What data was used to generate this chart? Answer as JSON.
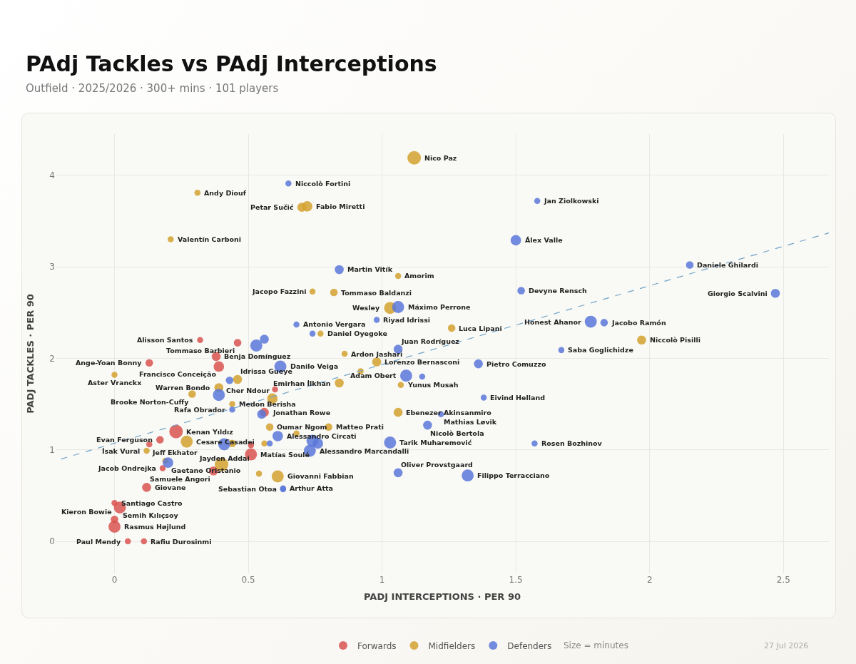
{
  "chart_data": {
    "type": "bubble",
    "title": "PAdj Tackles vs PAdj Interceptions",
    "subtitle": "Outfield · 2025/2026 · 300+ mins · 101 players",
    "xlabel": "PADJ INTERCEPTIONS · PER 90",
    "ylabel": "PADJ TACKLES · PER 90",
    "xlim": [
      -0.22,
      2.67
    ],
    "ylim": [
      -0.35,
      4.45
    ],
    "xticks": [
      0,
      0.5,
      1,
      1.5,
      2,
      2.5
    ],
    "yticks": [
      0,
      1,
      2,
      3,
      4
    ],
    "grid": true,
    "legend": "bottom",
    "marker": "circle",
    "series": [
      {
        "name": "Forwards",
        "color": "#d9534f",
        "x": [
          0.32,
          0.46,
          0.38,
          0.13,
          0.39,
          0.6,
          0.23,
          0.17,
          0.13,
          0.18,
          0.12,
          0,
          0.02,
          0,
          0,
          0.05,
          0.11,
          0.37,
          0.51,
          0.51,
          0.56
        ],
        "values": [
          2.2,
          2.17,
          2.02,
          1.95,
          1.91,
          1.66,
          1.2,
          1.11,
          1.06,
          0.8,
          0.59,
          0.42,
          0.37,
          0.24,
          0.16,
          0,
          0,
          0.77,
          0.95,
          1.05,
          1.41
        ],
        "sizes": [
          0.2,
          0.31,
          0.44,
          0.31,
          0.6,
          0.2,
          1,
          0.31,
          0.2,
          0.2,
          0.44,
          0.2,
          0.79,
          0.31,
          0.79,
          0.2,
          0.2,
          0.44,
          0.79,
          0.2,
          0.44
        ]
      },
      {
        "name": "Midfielders",
        "color": "#d4a22f",
        "x": [
          1.12,
          0.31,
          0.7,
          0.72,
          0.21,
          1.06,
          0.74,
          0.82,
          1.03,
          1.26,
          0.77,
          0.86,
          0.98,
          0.92,
          0.84,
          1.07,
          1.06,
          0.8,
          0.58,
          0.68,
          0.56,
          0.44,
          0.27,
          0.12,
          0.19,
          0.4,
          0.61,
          0.54,
          0.39,
          0.46,
          0.29,
          0.44,
          0,
          0.59,
          1.97
        ],
        "values": [
          4.19,
          3.81,
          3.65,
          3.66,
          3.3,
          2.9,
          2.73,
          2.72,
          2.55,
          2.33,
          2.27,
          2.05,
          1.96,
          1.86,
          1.73,
          1.71,
          1.41,
          1.25,
          1.25,
          1.18,
          1.07,
          1.07,
          1.09,
          0.99,
          0.88,
          0.84,
          0.71,
          0.74,
          1.68,
          1.77,
          1.61,
          1.5,
          1.82,
          1.56,
          2.2
        ],
        "sizes": [
          1,
          0.2,
          0.44,
          0.6,
          0.2,
          0.2,
          0.2,
          0.31,
          0.79,
          0.31,
          0.2,
          0.2,
          0.44,
          0.2,
          0.44,
          0.2,
          0.44,
          0.31,
          0.31,
          0.2,
          0.2,
          0.31,
          0.79,
          0.2,
          0.2,
          1,
          0.79,
          0.2,
          0.44,
          0.44,
          0.31,
          0.2,
          0.2,
          0.6,
          0.44
        ]
      },
      {
        "name": "Defenders",
        "color": "#5a78d9",
        "x": [
          0.65,
          1.58,
          1.5,
          0.84,
          2.15,
          1.52,
          2.47,
          1.06,
          0.98,
          1.78,
          1.83,
          1.67,
          0.68,
          0.74,
          1.06,
          1.36,
          1.09,
          1.15,
          1.38,
          1.22,
          1.17,
          1.03,
          1.57,
          1.06,
          1.32,
          0.62,
          0.56,
          0.53,
          0.39,
          0.44,
          0.55,
          0.61,
          0.58,
          0.74,
          0.76,
          0.73,
          0.63,
          0.63,
          0.41,
          0.2,
          0.43
        ],
        "values": [
          3.91,
          3.72,
          3.29,
          2.97,
          3.02,
          2.74,
          2.71,
          2.56,
          2.42,
          2.4,
          2.39,
          2.09,
          2.37,
          2.27,
          2.1,
          1.94,
          1.81,
          1.8,
          1.57,
          1.39,
          1.27,
          1.08,
          1.07,
          0.75,
          0.72,
          1.91,
          2.21,
          2.14,
          1.6,
          1.44,
          1.39,
          1.15,
          1.07,
          1.1,
          1.07,
          0.99,
          0.58,
          0.57,
          1.06,
          0.86,
          1.76
        ],
        "sizes": [
          0.2,
          0.2,
          0.6,
          0.44,
          0.31,
          0.31,
          0.44,
          0.79,
          0.2,
          0.79,
          0.31,
          0.2,
          0.2,
          0.2,
          0.44,
          0.44,
          0.79,
          0.2,
          0.2,
          0.2,
          0.44,
          0.79,
          0.2,
          0.44,
          0.79,
          0.79,
          0.44,
          0.79,
          0.79,
          0.2,
          0.44,
          0.6,
          0.2,
          0.79,
          0.6,
          0.79,
          0.2,
          0.2,
          0.79,
          0.6,
          0.31
        ]
      },
      {
        "type": "line",
        "color": "#6fa3c8",
        "line_style": "dashed",
        "marker": "none",
        "x": [
          -0.2,
          2.67
        ],
        "values": [
          0.9,
          3.37
        ]
      }
    ],
    "annotations": [
      {
        "text": "Alisson Santos",
        "x": 0.32,
        "y": 2.2
      },
      {
        "text": "Tommaso Barbieri",
        "x": 0.46,
        "y": 2.17
      },
      {
        "text": "Benja Domínguez",
        "x": 0.38,
        "y": 2.02
      },
      {
        "text": "Ange-Yoan Bonny",
        "x": 0.13,
        "y": 1.95
      },
      {
        "text": "Francisco Conceição",
        "x": 0.39,
        "y": 1.91
      },
      {
        "text": "Kenan Yıldız",
        "x": 0.23,
        "y": 1.2
      },
      {
        "text": "Evan Ferguson",
        "x": 0.17,
        "y": 1.11
      },
      {
        "text": "Jeff Ekhator",
        "x": 0.13,
        "y": 1.06
      },
      {
        "text": "Jacob Ondrejka",
        "x": 0.18,
        "y": 0.8
      },
      {
        "text": "Giovane",
        "x": 0.12,
        "y": 0.59
      },
      {
        "text": "Santiago Castro",
        "x": 0,
        "y": 0.42
      },
      {
        "text": "Semih Kılıçsoy",
        "x": 0.02,
        "y": 0.37
      },
      {
        "text": "Kieron Bowie",
        "x": 0,
        "y": 0.24
      },
      {
        "text": "Rasmus Højlund",
        "x": 0,
        "y": 0.16
      },
      {
        "text": "Paul Mendy",
        "x": 0.05,
        "y": 0
      },
      {
        "text": "Rafiu Durosinmi",
        "x": 0.11,
        "y": 0
      },
      {
        "text": "Samuele Angori",
        "x": 0.37,
        "y": 0.77
      },
      {
        "text": "Matías Soulé",
        "x": 0.51,
        "y": 0.95
      },
      {
        "text": "Jonathan Rowe",
        "x": 0.56,
        "y": 1.41
      },
      {
        "text": "Nico Paz",
        "x": 1.12,
        "y": 4.19
      },
      {
        "text": "Andy Diouf",
        "x": 0.31,
        "y": 3.81
      },
      {
        "text": "Petar Sučić",
        "x": 0.7,
        "y": 3.65
      },
      {
        "text": "Fabio Miretti",
        "x": 0.72,
        "y": 3.66
      },
      {
        "text": "Valentín Carboni",
        "x": 0.21,
        "y": 3.3
      },
      {
        "text": "Amorim",
        "x": 1.06,
        "y": 2.9
      },
      {
        "text": "Jacopo Fazzini",
        "x": 0.74,
        "y": 2.73
      },
      {
        "text": "Tommaso Baldanzi",
        "x": 0.82,
        "y": 2.72
      },
      {
        "text": "Wesley",
        "x": 1.03,
        "y": 2.55
      },
      {
        "text": "Luca Lipani",
        "x": 1.26,
        "y": 2.33
      },
      {
        "text": "Daniel Oyegoke",
        "x": 0.77,
        "y": 2.27
      },
      {
        "text": "Ardon Jashari",
        "x": 0.86,
        "y": 2.05
      },
      {
        "text": "Lorenzo Bernasconi",
        "x": 0.98,
        "y": 1.96
      },
      {
        "text": "Emirhan İlkhan",
        "x": 0.84,
        "y": 1.73
      },
      {
        "text": "Yunus Musah",
        "x": 1.07,
        "y": 1.71
      },
      {
        "text": "Ebenezer Akinsanmiro",
        "x": 1.06,
        "y": 1.41
      },
      {
        "text": "Matteo Prati",
        "x": 0.8,
        "y": 1.25
      },
      {
        "text": "Oumar Ngom",
        "x": 0.58,
        "y": 1.25
      },
      {
        "text": "Cesare Casadei",
        "x": 0.27,
        "y": 1.09
      },
      {
        "text": "İsak Vural",
        "x": 0.12,
        "y": 0.99
      },
      {
        "text": "Giovanni Fabbian",
        "x": 0.61,
        "y": 0.71
      },
      {
        "text": "Warren Bondo",
        "x": 0.39,
        "y": 1.68
      },
      {
        "text": "Idrissa Gueye",
        "x": 0.46,
        "y": 1.77
      },
      {
        "text": "Brooke Norton-Cuffy",
        "x": 0.29,
        "y": 1.61
      },
      {
        "text": "Medon Berisha",
        "x": 0.44,
        "y": 1.5
      },
      {
        "text": "Aster Vranckx",
        "x": 0,
        "y": 1.82
      },
      {
        "text": "Cher Ndour",
        "x": 0.59,
        "y": 1.56
      },
      {
        "text": "Niccolò Pisilli",
        "x": 1.97,
        "y": 2.2
      },
      {
        "text": "Niccolò Fortini",
        "x": 0.65,
        "y": 3.91
      },
      {
        "text": "Jan Ziolkowski",
        "x": 1.58,
        "y": 3.72
      },
      {
        "text": "Álex Valle",
        "x": 1.5,
        "y": 3.29
      },
      {
        "text": "Martin Vitík",
        "x": 0.84,
        "y": 2.97
      },
      {
        "text": "Daniele Ghilardi",
        "x": 2.15,
        "y": 3.02
      },
      {
        "text": "Devyne Rensch",
        "x": 1.52,
        "y": 2.74
      },
      {
        "text": "Giorgio Scalvini",
        "x": 2.47,
        "y": 2.71
      },
      {
        "text": "Máximo Perrone",
        "x": 1.06,
        "y": 2.56
      },
      {
        "text": "Riyad Idrissi",
        "x": 0.98,
        "y": 2.42
      },
      {
        "text": "Honest Ahanor",
        "x": 1.78,
        "y": 2.4
      },
      {
        "text": "Jacobo Ramón",
        "x": 1.83,
        "y": 2.39
      },
      {
        "text": "Saba Goglichidze",
        "x": 1.67,
        "y": 2.09
      },
      {
        "text": "Antonio Vergara",
        "x": 0.68,
        "y": 2.37
      },
      {
        "text": "Juan Rodríguez",
        "x": 1.06,
        "y": 2.1
      },
      {
        "text": "Pietro Comuzzo",
        "x": 1.36,
        "y": 1.94
      },
      {
        "text": "Adam Obert",
        "x": 1.09,
        "y": 1.81
      },
      {
        "text": "Eivind Helland",
        "x": 1.38,
        "y": 1.57
      },
      {
        "text": "Mathias Løvik",
        "x": 1.22,
        "y": 1.39
      },
      {
        "text": "Nicolò Bertola",
        "x": 1.17,
        "y": 1.27
      },
      {
        "text": "Tarik Muharemović",
        "x": 1.03,
        "y": 1.08
      },
      {
        "text": "Rosen Bozhinov",
        "x": 1.57,
        "y": 1.07
      },
      {
        "text": "Oliver Provstgaard",
        "x": 1.06,
        "y": 0.75
      },
      {
        "text": "Filippo Terracciano",
        "x": 1.32,
        "y": 0.72
      },
      {
        "text": "Danilo Veiga",
        "x": 0.62,
        "y": 1.91
      },
      {
        "text": "Rafa Obrador",
        "x": 0.44,
        "y": 1.44
      },
      {
        "text": "Alessandro Circati",
        "x": 0.61,
        "y": 1.15
      },
      {
        "text": "Alessandro Marcandalli",
        "x": 0.73,
        "y": 0.99
      },
      {
        "text": "Arthur Atta",
        "x": 0.63,
        "y": 0.58
      },
      {
        "text": "Sebastian Otoa",
        "x": 0.63,
        "y": 0.57
      },
      {
        "text": "Jayden Addai",
        "x": 0.41,
        "y": 1.06
      },
      {
        "text": "Gaetano Oristanio",
        "x": 0.2,
        "y": 0.86
      },
      "Size = minutes",
      "27 Jul 2026"
    ]
  }
}
